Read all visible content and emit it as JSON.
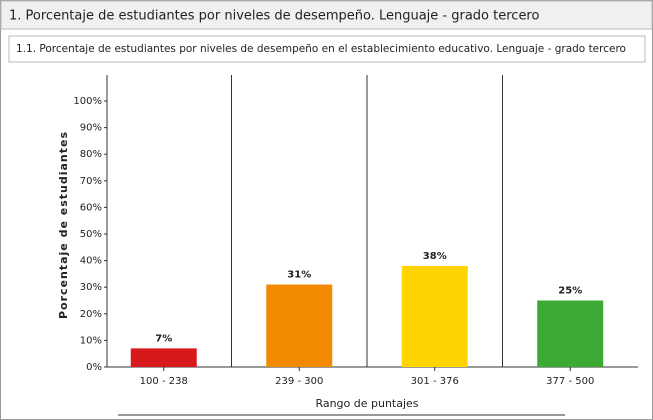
{
  "header": {
    "title": "1. Porcentaje de estudiantes por niveles de desempeño. Lenguaje - grado tercero"
  },
  "chart_data": {
    "type": "bar",
    "title": "1.1. Porcentaje de estudiantes por niveles de desempeño en el establecimiento educativo. Lenguaje - grado tercero",
    "x_label": "Rango de puntajes",
    "y_label": "Porcentaje de estudiantes",
    "categories": [
      "100 - 238",
      "239 - 300",
      "301 - 376",
      "377 - 500"
    ],
    "values": [
      7,
      31,
      38,
      25
    ],
    "value_labels": [
      "7%",
      "31%",
      "38%",
      "25%"
    ],
    "colors": [
      "#d7191c",
      "#f28a00",
      "#ffd400",
      "#3aaa35"
    ],
    "ylim": [
      0,
      100
    ],
    "yticks": [
      {
        "value": 0,
        "label": "0%"
      },
      {
        "value": 10,
        "label": "10%"
      },
      {
        "value": 20,
        "label": "20%"
      },
      {
        "value": 30,
        "label": "30%"
      },
      {
        "value": 40,
        "label": "40%"
      },
      {
        "value": 50,
        "label": "50%"
      },
      {
        "value": 60,
        "label": "60%"
      },
      {
        "value": 70,
        "label": "70%"
      },
      {
        "value": 80,
        "label": "80%"
      },
      {
        "value": 90,
        "label": "90%"
      },
      {
        "value": 100,
        "label": "100%"
      }
    ]
  }
}
